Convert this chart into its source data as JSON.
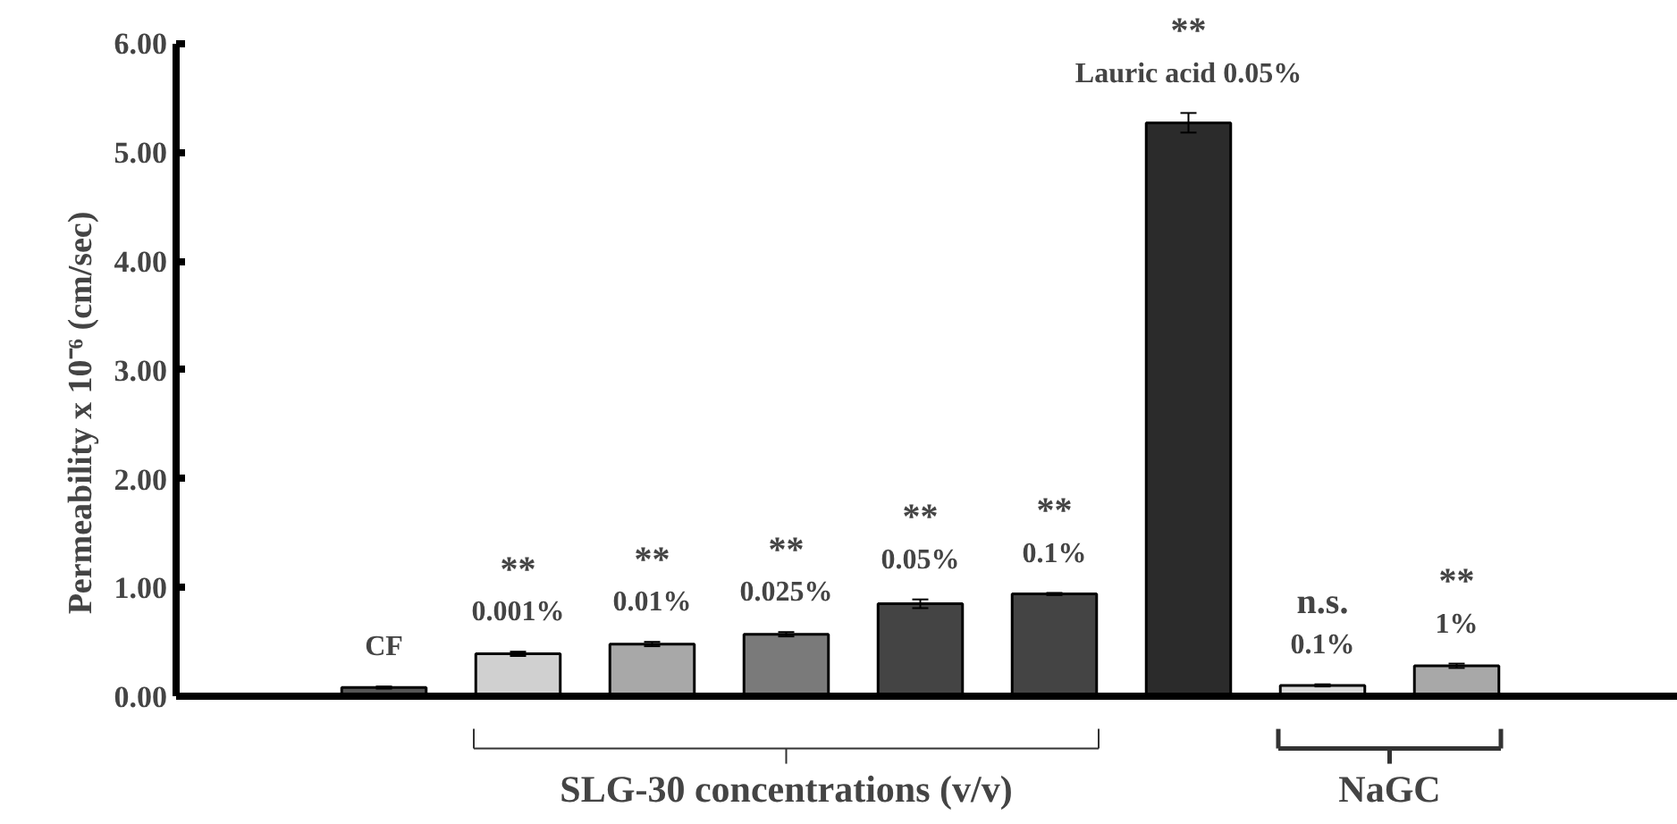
{
  "chart_data": {
    "type": "bar",
    "ylabel": "Permeability x 10⁻⁶ (cm/sec)",
    "categories": [
      "CF",
      "0.001%",
      "0.01%",
      "0.025%",
      "0.05%",
      "0.1%",
      "Lauric acid 0.05%",
      "0.1%",
      "1%"
    ],
    "values": [
      0.08,
      0.39,
      0.48,
      0.57,
      0.85,
      0.94,
      5.27,
      0.1,
      0.28
    ],
    "errors": [
      0.01,
      0.02,
      0.02,
      0.02,
      0.04,
      0.01,
      0.09,
      0.01,
      0.02
    ],
    "colors": [
      "#555555",
      "#d0d0d0",
      "#a8a8a8",
      "#7a7a7a",
      "#444444",
      "#444444",
      "#2b2b2b",
      "#d9d9d9",
      "#a8a8a8"
    ],
    "ylim": [
      0,
      6
    ],
    "yticks": [
      {
        "value": 0,
        "label": "0.00"
      },
      {
        "value": 1,
        "label": "1.00"
      },
      {
        "value": 2,
        "label": "2.00"
      },
      {
        "value": 3,
        "label": "3.00"
      },
      {
        "value": 4,
        "label": "4.00"
      },
      {
        "value": 5,
        "label": "5.00"
      },
      {
        "value": 6,
        "label": "6.00"
      }
    ],
    "tick_labels": "y",
    "grid": false,
    "annotations": [
      "**",
      "**",
      "**",
      "**",
      "**",
      "**",
      "n.s.",
      "**",
      "SLG-30 concentrations (v/v)",
      "NaGC"
    ]
  }
}
